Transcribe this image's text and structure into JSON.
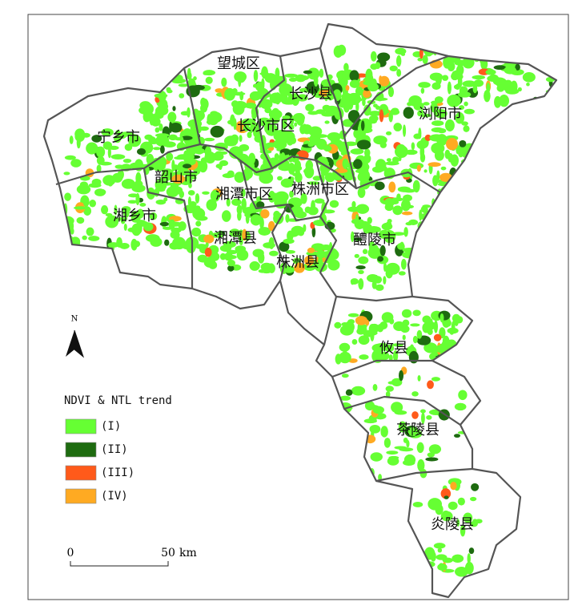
{
  "map": {
    "regions": [
      {
        "label": "望城区"
      },
      {
        "label": "长沙县"
      },
      {
        "label": "浏阳市"
      },
      {
        "label": "长沙市区"
      },
      {
        "label": "宁乡市"
      },
      {
        "label": "韶山市"
      },
      {
        "label": "湘潭市区"
      },
      {
        "label": "株洲市区"
      },
      {
        "label": "湘乡市"
      },
      {
        "label": "湘潭县"
      },
      {
        "label": "醴陵市"
      },
      {
        "label": "株洲县"
      },
      {
        "label": "攸县"
      },
      {
        "label": "茶陵县"
      },
      {
        "label": "炎陵县"
      }
    ],
    "north": "N",
    "legend": {
      "title": "NDVI & NTL trend",
      "items": [
        {
          "label": "(I)",
          "color": "#66ff33"
        },
        {
          "label": "(II)",
          "color": "#1e6b10"
        },
        {
          "label": "(III)",
          "color": "#ff5a1a"
        },
        {
          "label": "(IV)",
          "color": "#ffaa22"
        }
      ]
    },
    "scale": {
      "start": "0",
      "end": "50",
      "unit": "km"
    }
  }
}
